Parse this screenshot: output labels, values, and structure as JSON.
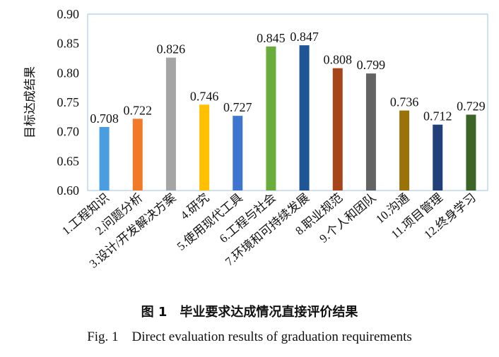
{
  "chart_data": {
    "type": "bar",
    "title": "",
    "xlabel": "",
    "ylabel": "目标达成结果",
    "ylim": [
      0.6,
      0.9
    ],
    "yticks": [
      "0.60",
      "0.65",
      "0.70",
      "0.75",
      "0.80",
      "0.85",
      "0.90"
    ],
    "categories": [
      "1.工程知识",
      "2.问题分析",
      "3.设计/开发解决方案",
      "4.研究",
      "5.使用现代工具",
      "6.工程与社会",
      "7.环境和可持续发展",
      "8.职业规范",
      "9.个人和团队",
      "10.沟通",
      "11.项目管理",
      "12.终身学习"
    ],
    "values": [
      0.708,
      0.722,
      0.826,
      0.746,
      0.727,
      0.845,
      0.847,
      0.808,
      0.799,
      0.736,
      0.712,
      0.729
    ],
    "data_labels": [
      "0.708",
      "0.722",
      "0.826",
      "0.746",
      "0.727",
      "0.845",
      "0.847",
      "0.808",
      "0.799",
      "0.736",
      "0.712",
      "0.729"
    ],
    "colors": [
      "#4a9de0",
      "#f07a28",
      "#a5a5a5",
      "#ffc000",
      "#3e75d0",
      "#6aad3c",
      "#1f5596",
      "#a6441a",
      "#636363",
      "#9a7208",
      "#21407a",
      "#3c6426"
    ],
    "grid": false
  },
  "caption": {
    "cn": "图 1　毕业要求达成情况直接评价结果",
    "en": "Fig. 1　Direct evaluation results of graduation requirements"
  }
}
